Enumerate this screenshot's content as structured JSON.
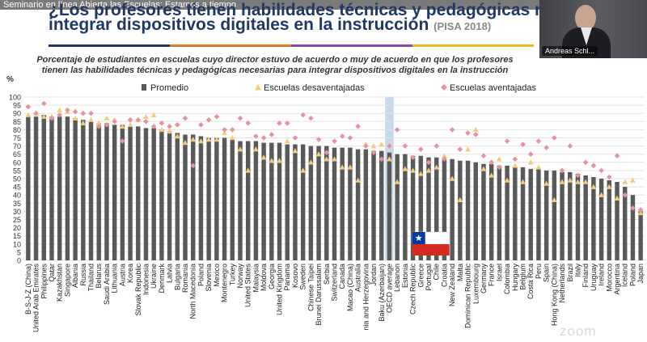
{
  "window": {
    "title": "Seminario en línea Abierta las Escuelas: Estamos a tiempo"
  },
  "slide": {
    "title_line1": "¿Los profesores tienen habilidades técnicas y pedagógicas necesarias para",
    "title_line2": "integrar dispositivos digitales en la instrucción",
    "title_source": "(PISA 2018)",
    "stripe_colors": [
      "#1f3864",
      "#e07a2b",
      "#8e44ad",
      "#f3b61f"
    ]
  },
  "video": {
    "participant_name": "Andreas Schl..."
  },
  "branding": {
    "logo_text": "zoom"
  },
  "chart_data": {
    "type": "bar",
    "title": "Porcentaje de estudiantes en escuelas cuyo director estuvo de acuerdo o muy de acuerdo en que los profesores tienen las habilidades técnicas y pedagógicas necesarias para integrar dispositivos digitales en la instrucción",
    "title_lines": [
      "Porcentaje de estudiantes en escuelas cuyo director estuvo de acuerdo o muy de acuerdo en que los profesores",
      "tienen las habilidades técnicas y pedagógicas necesarias para integrar dispositivos digitales en la instrucción"
    ],
    "ylabel": "%",
    "xlabel": "",
    "ylim": [
      0,
      100
    ],
    "yticks": [
      0,
      5,
      10,
      15,
      20,
      25,
      30,
      35,
      40,
      45,
      50,
      55,
      60,
      65,
      70,
      75,
      80,
      85,
      90,
      95,
      100
    ],
    "grid": true,
    "legend_position": "top",
    "series_colors": {
      "Promedio": "#595959",
      "Escuelas desaventajadas": "#f7c97a",
      "Escuelas aventajadas": "#e8939b"
    },
    "highlight": {
      "category": "OECD average",
      "color": "#c9d9ec"
    },
    "series": [
      {
        "name": "Promedio",
        "kind": "bar"
      },
      {
        "name": "Escuelas desaventajadas",
        "kind": "triangle"
      },
      {
        "name": "Escuelas aventajadas",
        "kind": "diamond"
      }
    ],
    "categories": [
      "B-S-J-Z (China)",
      "United Arab Emirates",
      "Philippines",
      "Qatar",
      "Kazakhstan",
      "Singapore",
      "Albania",
      "Russia",
      "Thailand",
      "Belarus",
      "Saudi Arabia",
      "Lithuania",
      "Austria",
      "Korea",
      "Slovak Republic",
      "Indonesia",
      "Ukraine",
      "Denmark",
      "Latvia",
      "Bulgaria",
      "Romania",
      "North Macedonia",
      "Poland",
      "Slovenia",
      "Mexico",
      "Montenegro",
      "Turkey",
      "Norway",
      "United States",
      "Malaysia",
      "Moldova",
      "Georgia",
      "United Kingdom",
      "Panama",
      "Kosovo",
      "Sweden",
      "Chinese Taipei",
      "Brunei Darussalam",
      "Serbia",
      "Switzerland",
      "Canada",
      "Macao (China)",
      "Australia",
      "Bosnia and Herzegovina",
      "Jordan",
      "Baku (Azerbaijan)",
      "OECD average",
      "Lebanon",
      "Estonia",
      "Czech Republic",
      "Greece",
      "Portugal",
      "Chile",
      "Croatia",
      "New Zealand",
      "Malta",
      "Dominican Republic",
      "Luxembourg",
      "Germany",
      "France",
      "Israel",
      "Colombia",
      "Hungary",
      "Belgium",
      "Costa Rica",
      "Peru",
      "Spain",
      "Hong Kong (China)",
      "Netherlands",
      "Brazil",
      "Italy",
      "Finland",
      "Uruguay",
      "Ireland",
      "Morocco",
      "Argentina",
      "Iceland",
      "Poland",
      "Japan"
    ],
    "category_labels": [
      "B-S-J-Z (China)",
      "United Arab Emirates",
      "Philippines",
      "Qatar",
      "Kazakhstan",
      "Singapore",
      "Albania",
      "Russia",
      "Thailand",
      "Belarus",
      "Saudi Arabia",
      "Lithuania",
      "Austria",
      "Korea",
      "Slovak Republic",
      "Indonesia",
      "Ukraine",
      "Denmark",
      "Latvia",
      "Bulgaria",
      "Romania",
      "North Macedonia",
      "Poland",
      "Slovenia",
      "Mexico",
      "Montenegro",
      "Turkey",
      "Norway",
      "United States",
      "Malaysia",
      "Moldova",
      "Georgia",
      "United Kingdom",
      "Panama",
      "Kosovo",
      "Sweden",
      "Chinese Taipei",
      "Brunei Darussalam",
      "Serbia",
      "Switzerland",
      "Canada",
      "Macao (China)",
      "Australia",
      "nia and Herzegovina",
      "Jordan",
      "Baku (Azerbaijan)",
      "OECD average",
      "Lebanon",
      "Estonia",
      "Czech Republic",
      "Greece",
      "Portugal",
      "Chile",
      "Croatia",
      "New Zealand",
      "Malta",
      "Dominican Republic",
      "Luxembourg",
      "Germany",
      "France",
      "Israel",
      "Colombia",
      "Hungary",
      "Belgium",
      "Costa Rica",
      "Peru",
      "Spain",
      "Hong Kong (China)",
      "Netherlands",
      "Brazil",
      "Italy",
      "Finland",
      "Uruguay",
      "Ireland",
      "Morocco",
      "Argentina",
      "Iceland",
      "Poland",
      "Japan"
    ],
    "promedio": [
      88,
      88,
      89,
      88,
      88,
      88,
      87,
      86,
      85,
      84,
      84,
      83,
      83,
      82,
      82,
      81,
      81,
      80,
      79,
      78,
      77,
      77,
      76,
      75,
      75,
      75,
      74,
      73,
      73,
      73,
      72,
      72,
      72,
      71,
      71,
      71,
      70,
      70,
      70,
      69,
      69,
      69,
      68,
      68,
      67,
      67,
      66,
      65,
      65,
      64,
      64,
      63,
      63,
      62,
      62,
      61,
      61,
      60,
      59,
      59,
      58,
      58,
      57,
      57,
      56,
      56,
      55,
      55,
      54,
      54,
      53,
      52,
      51,
      50,
      49,
      48,
      45,
      40,
      30
    ],
    "desaventajadas": [
      89,
      90,
      88,
      88,
      92,
      91,
      87,
      84,
      86,
      84,
      87,
      86,
      82,
      83,
      86,
      88,
      89,
      80,
      79,
      76,
      72,
      74,
      73,
      74,
      74,
      78,
      75,
      68,
      55,
      68,
      63,
      61,
      61,
      73,
      67,
      55,
      60,
      65,
      62,
      62,
      57,
      57,
      49,
      71,
      70,
      71,
      62,
      48,
      56,
      55,
      53,
      55,
      57,
      64,
      50,
      37,
      68,
      80,
      56,
      52,
      62,
      49,
      58,
      48,
      60,
      57,
      47,
      37,
      48,
      49,
      48,
      48,
      45,
      40,
      45,
      38,
      48,
      49,
      29
    ],
    "aventajadas": [
      94,
      90,
      96,
      87,
      89,
      92,
      91,
      90,
      90,
      82,
      83,
      85,
      73,
      86,
      86,
      85,
      82,
      84,
      82,
      83,
      87,
      58,
      83,
      86,
      88,
      80,
      80,
      87,
      84,
      76,
      75,
      77,
      84,
      84,
      75,
      89,
      87,
      74,
      66,
      73,
      76,
      75,
      82,
      70,
      66,
      62,
      70,
      80,
      70,
      63,
      68,
      60,
      70,
      62,
      80,
      68,
      78,
      77,
      64,
      60,
      57,
      73,
      62,
      71,
      65,
      73,
      69,
      75,
      55,
      70,
      52,
      60,
      58,
      55,
      51,
      64,
      40,
      32,
      31
    ]
  }
}
